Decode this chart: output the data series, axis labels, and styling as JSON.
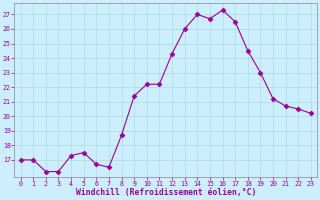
{
  "x": [
    0,
    1,
    2,
    3,
    4,
    5,
    6,
    7,
    8,
    9,
    10,
    11,
    12,
    13,
    14,
    15,
    16,
    17,
    18,
    19,
    20,
    21,
    22,
    23
  ],
  "y": [
    17.0,
    17.0,
    16.2,
    16.2,
    17.3,
    17.5,
    16.7,
    16.5,
    18.7,
    21.4,
    22.2,
    22.2,
    24.3,
    26.0,
    27.0,
    26.7,
    27.3,
    26.5,
    24.5,
    23.0,
    21.2,
    20.7,
    20.5,
    20.2
  ],
  "line_color": "#990099",
  "marker": "D",
  "marker_size": 2.5,
  "bg_color": "#cceeff",
  "grid_color": "#aadddd",
  "xlabel": "Windchill (Refroidissement éolien,°C)",
  "xlabel_color": "#990099",
  "tick_color": "#990099",
  "spine_color": "#888888",
  "ylim": [
    15.8,
    27.8
  ],
  "yticks": [
    17,
    18,
    19,
    20,
    21,
    22,
    23,
    24,
    25,
    26,
    27
  ],
  "xlim": [
    -0.5,
    23.5
  ],
  "xticks": [
    0,
    1,
    2,
    3,
    4,
    5,
    6,
    7,
    8,
    9,
    10,
    11,
    12,
    13,
    14,
    15,
    16,
    17,
    18,
    19,
    20,
    21,
    22,
    23
  ]
}
